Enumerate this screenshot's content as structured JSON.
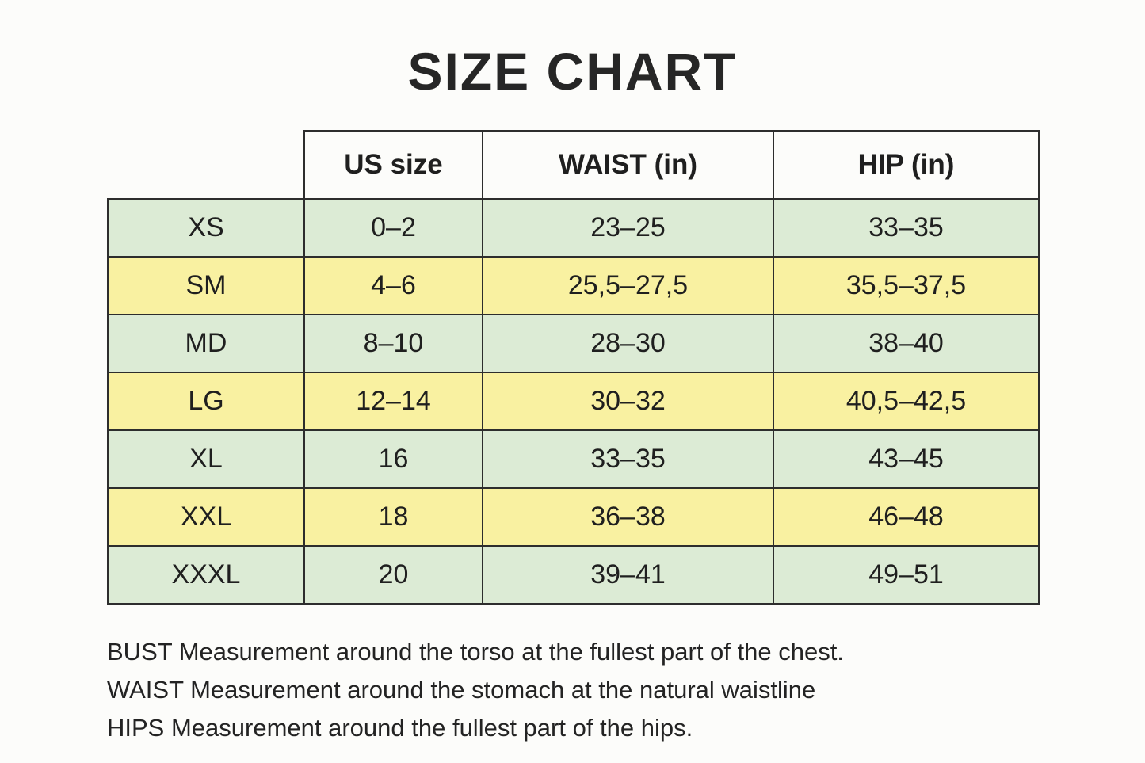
{
  "page": {
    "title": "SIZE CHART",
    "background": "#fcfcfa"
  },
  "table": {
    "headers": [
      {
        "label": "US size"
      },
      {
        "label": "WAIST (in)"
      },
      {
        "label": "HIP (in)"
      }
    ],
    "rows": [
      {
        "size": "XS",
        "us_size": "0–2",
        "waist": "23–25",
        "hip": "33–35",
        "highlight": "green"
      },
      {
        "size": "SM",
        "us_size": "4–6",
        "waist": "25,5–27,5",
        "hip": "35,5–37,5",
        "highlight": "yellow"
      },
      {
        "size": "MD",
        "us_size": "8–10",
        "waist": "28–30",
        "hip": "38–40",
        "highlight": "green"
      },
      {
        "size": "LG",
        "us_size": "12–14",
        "waist": "30–32",
        "hip": "40,5–42,5",
        "highlight": "yellow"
      },
      {
        "size": "XL",
        "us_size": "16",
        "waist": "33–35",
        "hip": "43–45",
        "highlight": "green"
      },
      {
        "size": "XXL",
        "us_size": "18",
        "waist": "36–38",
        "hip": "46–48",
        "highlight": "yellow"
      },
      {
        "size": "XXXL",
        "us_size": "20",
        "waist": "39–41",
        "hip": "49–51",
        "highlight": "green"
      }
    ],
    "colors": {
      "green": "#dcebd5",
      "yellow": "#f9f1a1",
      "border": "#2d2d2d",
      "text": "#1f1f1f"
    }
  },
  "footer": {
    "lines": [
      "BUST Measurement around the torso at the fullest part of the chest.",
      "WAIST Measurement around the stomach at the natural waistline",
      "HIPS Measurement around the fullest part of the hips."
    ]
  }
}
